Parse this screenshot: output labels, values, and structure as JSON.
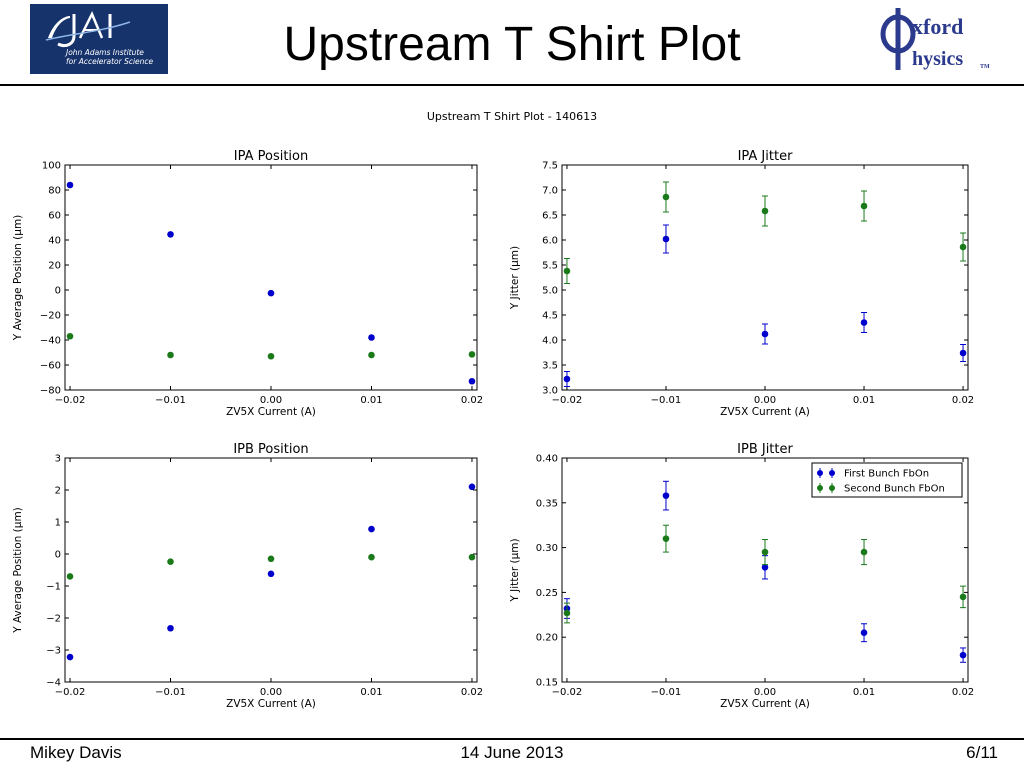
{
  "slide": {
    "title": "Upstream T Shirt Plot",
    "jai_logo_line1": "John Adams Institute",
    "jai_logo_line2": "for Accelerator Science",
    "oxford_logo_word1": "xford",
    "oxford_logo_word2": "hysics",
    "oxford_logo_tm": "TM",
    "footer_left": "Mikey Davis",
    "footer_center": "14 June 2013",
    "footer_right": "6/11"
  },
  "figure": {
    "suptitle": "Upstream T Shirt Plot - 140613"
  },
  "colors": {
    "first": "#0000cc",
    "second": "#1a7a1a",
    "logo_bg": "#17336b",
    "oxford_blue": "#2b3a8c"
  },
  "chart_data": [
    {
      "type": "scatter",
      "title": "IPA Position",
      "xlabel": "ZV5X Current (A)",
      "ylabel": "Y Average Position (μm)",
      "xlim": [
        -0.0205,
        0.0205
      ],
      "ylim": [
        -80,
        100
      ],
      "xticks": [
        -0.02,
        -0.01,
        0.0,
        0.01,
        0.02
      ],
      "xtick_labels": [
        "−0.02",
        "−0.01",
        "0.00",
        "0.01",
        "0.02"
      ],
      "yticks": [
        -80,
        -60,
        -40,
        -20,
        0,
        20,
        40,
        60,
        80,
        100
      ],
      "ytick_labels": [
        "−80",
        "−60",
        "−40",
        "−20",
        "0",
        "20",
        "40",
        "60",
        "80",
        "100"
      ],
      "x": [
        -0.02,
        -0.01,
        0.0,
        0.01,
        0.02
      ],
      "series": [
        {
          "color": "#0000cc",
          "values": [
            84,
            44.5,
            -2.5,
            -38,
            -73
          ]
        },
        {
          "color": "#1a7a1a",
          "values": [
            -37,
            -52,
            -53,
            -52,
            -51.5
          ]
        }
      ]
    },
    {
      "type": "scatter",
      "title": "IPA Jitter",
      "xlabel": "ZV5X Current (A)",
      "ylabel": "Y Jitter (μm)",
      "xlim": [
        -0.0205,
        0.0205
      ],
      "ylim": [
        3.0,
        7.5
      ],
      "xticks": [
        -0.02,
        -0.01,
        0.0,
        0.01,
        0.02
      ],
      "xtick_labels": [
        "−0.02",
        "−0.01",
        "0.00",
        "0.01",
        "0.02"
      ],
      "yticks": [
        3.0,
        3.5,
        4.0,
        4.5,
        5.0,
        5.5,
        6.0,
        6.5,
        7.0,
        7.5
      ],
      "ytick_labels": [
        "3.0",
        "3.5",
        "4.0",
        "4.5",
        "5.0",
        "5.5",
        "6.0",
        "6.5",
        "7.0",
        "7.5"
      ],
      "x": [
        -0.02,
        -0.01,
        0.0,
        0.01,
        0.02
      ],
      "series": [
        {
          "color": "#0000cc",
          "values": [
            3.22,
            6.02,
            4.12,
            4.35,
            3.74
          ],
          "errors": [
            0.15,
            0.28,
            0.2,
            0.2,
            0.17
          ]
        },
        {
          "color": "#1a7a1a",
          "values": [
            5.38,
            6.86,
            6.58,
            6.68,
            5.86
          ],
          "errors": [
            0.25,
            0.3,
            0.3,
            0.3,
            0.28
          ]
        }
      ]
    },
    {
      "type": "scatter",
      "title": "IPB Position",
      "xlabel": "ZV5X Current (A)",
      "ylabel": "Y Average Position (μm)",
      "xlim": [
        -0.0205,
        0.0205
      ],
      "ylim": [
        -4,
        3
      ],
      "xticks": [
        -0.02,
        -0.01,
        0.0,
        0.01,
        0.02
      ],
      "xtick_labels": [
        "−0.02",
        "−0.01",
        "0.00",
        "0.01",
        "0.02"
      ],
      "yticks": [
        -4,
        -3,
        -2,
        -1,
        0,
        1,
        2,
        3
      ],
      "ytick_labels": [
        "−4",
        "−3",
        "−2",
        "−1",
        "0",
        "1",
        "2",
        "3"
      ],
      "x": [
        -0.02,
        -0.01,
        0.0,
        0.01,
        0.02
      ],
      "series": [
        {
          "color": "#0000cc",
          "values": [
            -3.22,
            -2.32,
            -0.62,
            0.78,
            2.1
          ]
        },
        {
          "color": "#1a7a1a",
          "values": [
            -0.7,
            -0.24,
            -0.15,
            -0.1,
            -0.1
          ]
        }
      ]
    },
    {
      "type": "scatter",
      "title": "IPB Jitter",
      "xlabel": "ZV5X Current (A)",
      "ylabel": "Y Jitter (μm)",
      "xlim": [
        -0.0205,
        0.0205
      ],
      "ylim": [
        0.15,
        0.4
      ],
      "xticks": [
        -0.02,
        -0.01,
        0.0,
        0.01,
        0.02
      ],
      "xtick_labels": [
        "−0.02",
        "−0.01",
        "0.00",
        "0.01",
        "0.02"
      ],
      "yticks": [
        0.15,
        0.2,
        0.25,
        0.3,
        0.35,
        0.4
      ],
      "ytick_labels": [
        "0.15",
        "0.20",
        "0.25",
        "0.30",
        "0.35",
        "0.40"
      ],
      "x": [
        -0.02,
        -0.01,
        0.0,
        0.01,
        0.02
      ],
      "legend": "top-right",
      "series": [
        {
          "name": "First Bunch FbOn",
          "color": "#0000cc",
          "values": [
            0.232,
            0.358,
            0.278,
            0.205,
            0.18
          ],
          "errors": [
            0.011,
            0.016,
            0.013,
            0.01,
            0.008
          ]
        },
        {
          "name": "Second Bunch FbOn",
          "color": "#1a7a1a",
          "values": [
            0.227,
            0.31,
            0.295,
            0.295,
            0.245
          ],
          "errors": [
            0.011,
            0.015,
            0.014,
            0.014,
            0.012
          ]
        }
      ]
    }
  ]
}
